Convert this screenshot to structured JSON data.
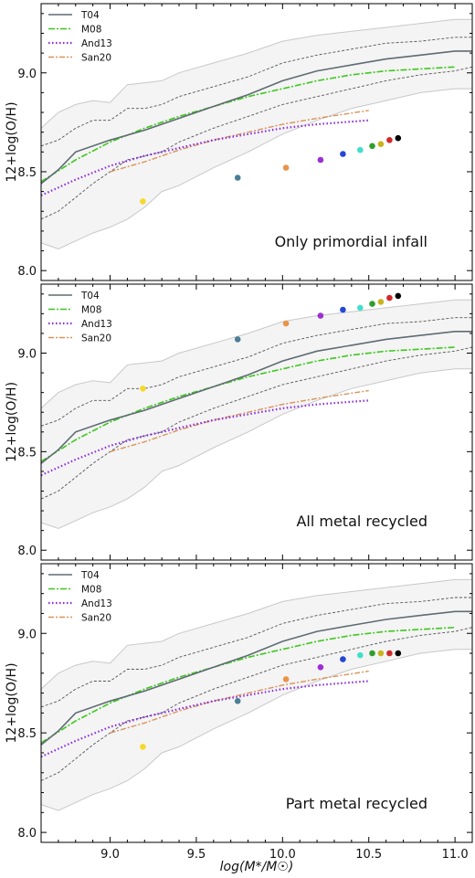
{
  "figure": {
    "xlabel": "log(M*/M☉)",
    "ylabel": "12+log(O/H)"
  },
  "colors": {
    "T04": "#5f6b73",
    "M08": "#3ec81e",
    "And13": "#8a2be2",
    "San20": "#d9935a",
    "band_fill": "#f4f4f4",
    "band_outer": "#c8c8c8",
    "band_inner": "#555555"
  },
  "chart_data": [
    {
      "type": "line",
      "panel": "top",
      "annotation": "Only primordial infall",
      "xlim": [
        8.6,
        11.1
      ],
      "ylim": [
        7.95,
        9.35
      ],
      "xticks": [
        9.0,
        9.5,
        10.0,
        10.5,
        11.0
      ],
      "xticklabels": [
        "9.0",
        "9.5",
        "10.0",
        "10.5",
        "11.0"
      ],
      "yticks": [
        8.0,
        8.5,
        9.0
      ],
      "yticklabels": [
        "8.0",
        "8.5",
        "9.0"
      ],
      "legend": [
        "T04",
        "M08",
        "And13",
        "San20"
      ],
      "legend_position": "top-left",
      "points": [
        {
          "x": 9.19,
          "y": 8.35,
          "color": "#f5d92a"
        },
        {
          "x": 9.74,
          "y": 8.47,
          "color": "#4a7f96"
        },
        {
          "x": 10.02,
          "y": 8.52,
          "color": "#e8944a"
        },
        {
          "x": 10.22,
          "y": 8.56,
          "color": "#9b2fd4"
        },
        {
          "x": 10.35,
          "y": 8.59,
          "color": "#2646d8"
        },
        {
          "x": 10.45,
          "y": 8.61,
          "color": "#3fe0c8"
        },
        {
          "x": 10.52,
          "y": 8.63,
          "color": "#2e9e2e"
        },
        {
          "x": 10.57,
          "y": 8.64,
          "color": "#c8b41e"
        },
        {
          "x": 10.62,
          "y": 8.66,
          "color": "#d42828"
        },
        {
          "x": 10.67,
          "y": 8.67,
          "color": "#000000"
        }
      ]
    },
    {
      "type": "line",
      "panel": "middle",
      "annotation": "All metal recycled",
      "xlim": [
        8.6,
        11.1
      ],
      "ylim": [
        7.95,
        9.35
      ],
      "xticks": [
        9.0,
        9.5,
        10.0,
        10.5,
        11.0
      ],
      "xticklabels": [
        "9.0",
        "9.5",
        "10.0",
        "10.5",
        "11.0"
      ],
      "yticks": [
        8.0,
        8.5,
        9.0
      ],
      "yticklabels": [
        "8.0",
        "8.5",
        "9.0"
      ],
      "legend": [
        "T04",
        "M08",
        "And13",
        "San20"
      ],
      "legend_position": "top-left",
      "points": [
        {
          "x": 9.19,
          "y": 8.82,
          "color": "#f5d92a"
        },
        {
          "x": 9.74,
          "y": 9.07,
          "color": "#4a7f96"
        },
        {
          "x": 10.02,
          "y": 9.15,
          "color": "#e8944a"
        },
        {
          "x": 10.22,
          "y": 9.19,
          "color": "#9b2fd4"
        },
        {
          "x": 10.35,
          "y": 9.22,
          "color": "#2646d8"
        },
        {
          "x": 10.45,
          "y": 9.23,
          "color": "#3fe0c8"
        },
        {
          "x": 10.52,
          "y": 9.25,
          "color": "#2e9e2e"
        },
        {
          "x": 10.57,
          "y": 9.26,
          "color": "#c8b41e"
        },
        {
          "x": 10.62,
          "y": 9.28,
          "color": "#d42828"
        },
        {
          "x": 10.67,
          "y": 9.29,
          "color": "#000000"
        }
      ]
    },
    {
      "type": "line",
      "panel": "bottom",
      "annotation": "Part metal recycled",
      "xlim": [
        8.6,
        11.1
      ],
      "ylim": [
        7.95,
        9.35
      ],
      "xticks": [
        9.0,
        9.5,
        10.0,
        10.5,
        11.0
      ],
      "xticklabels": [
        "9.0",
        "9.5",
        "10.0",
        "10.5",
        "11.0"
      ],
      "yticks": [
        8.0,
        8.5,
        9.0
      ],
      "yticklabels": [
        "8.0",
        "8.5",
        "9.0"
      ],
      "legend": [
        "T04",
        "M08",
        "And13",
        "San20"
      ],
      "legend_position": "top-left",
      "points": [
        {
          "x": 9.19,
          "y": 8.43,
          "color": "#f5d92a"
        },
        {
          "x": 9.74,
          "y": 8.66,
          "color": "#4a7f96"
        },
        {
          "x": 10.02,
          "y": 8.77,
          "color": "#e8944a"
        },
        {
          "x": 10.22,
          "y": 8.83,
          "color": "#9b2fd4"
        },
        {
          "x": 10.35,
          "y": 8.87,
          "color": "#2646d8"
        },
        {
          "x": 10.45,
          "y": 8.89,
          "color": "#3fe0c8"
        },
        {
          "x": 10.52,
          "y": 8.9,
          "color": "#2e9e2e"
        },
        {
          "x": 10.57,
          "y": 8.9,
          "color": "#c8b41e"
        },
        {
          "x": 10.62,
          "y": 8.9,
          "color": "#d42828"
        },
        {
          "x": 10.67,
          "y": 8.9,
          "color": "#000000"
        }
      ]
    }
  ],
  "relations": {
    "T04": {
      "x": [
        8.6,
        8.7,
        8.8,
        9.0,
        9.2,
        9.4,
        9.6,
        9.8,
        10.0,
        10.2,
        10.4,
        10.6,
        10.8,
        11.0,
        11.1
      ],
      "y": [
        8.44,
        8.51,
        8.6,
        8.66,
        8.71,
        8.77,
        8.83,
        8.89,
        8.96,
        9.01,
        9.04,
        9.07,
        9.09,
        9.11,
        9.11
      ]
    },
    "M08": {
      "x": [
        8.6,
        8.8,
        9.0,
        9.2,
        9.4,
        9.6,
        9.8,
        10.0,
        10.2,
        10.4,
        10.6,
        10.8,
        11.0
      ],
      "y": [
        8.45,
        8.56,
        8.65,
        8.72,
        8.78,
        8.83,
        8.88,
        8.92,
        8.96,
        8.99,
        9.01,
        9.02,
        9.03
      ]
    },
    "And13": {
      "x": [
        8.6,
        8.8,
        9.0,
        9.2,
        9.4,
        9.6,
        9.8,
        10.0,
        10.2,
        10.5
      ],
      "y": [
        8.38,
        8.46,
        8.53,
        8.58,
        8.62,
        8.66,
        8.69,
        8.72,
        8.74,
        8.76
      ]
    },
    "San20": {
      "x": [
        9.0,
        9.2,
        9.4,
        9.6,
        9.8,
        10.0,
        10.2,
        10.5
      ],
      "y": [
        8.5,
        8.55,
        8.61,
        8.66,
        8.7,
        8.74,
        8.77,
        8.81
      ]
    },
    "band_upper_outer": {
      "x": [
        8.6,
        8.7,
        8.8,
        8.9,
        9.0,
        9.1,
        9.2,
        9.3,
        9.4,
        9.6,
        9.8,
        10.0,
        10.2,
        10.4,
        10.6,
        10.8,
        11.0,
        11.1
      ],
      "y": [
        8.72,
        8.8,
        8.84,
        8.86,
        8.85,
        8.94,
        8.95,
        8.96,
        9.0,
        9.05,
        9.1,
        9.16,
        9.19,
        9.21,
        9.23,
        9.25,
        9.27,
        9.27
      ]
    },
    "band_upper_inner": {
      "x": [
        8.6,
        8.7,
        8.8,
        8.9,
        9.0,
        9.1,
        9.2,
        9.3,
        9.4,
        9.6,
        9.8,
        10.0,
        10.2,
        10.4,
        10.6,
        10.8,
        11.0,
        11.1
      ],
      "y": [
        8.63,
        8.66,
        8.72,
        8.76,
        8.76,
        8.82,
        8.82,
        8.84,
        8.88,
        8.93,
        8.98,
        9.05,
        9.09,
        9.12,
        9.15,
        9.16,
        9.18,
        9.18
      ]
    },
    "band_lower_inner": {
      "x": [
        8.6,
        8.7,
        8.8,
        8.9,
        9.0,
        9.1,
        9.2,
        9.3,
        9.4,
        9.6,
        9.8,
        10.0,
        10.2,
        10.4,
        10.6,
        10.8,
        11.0,
        11.1
      ],
      "y": [
        8.26,
        8.3,
        8.37,
        8.44,
        8.5,
        8.56,
        8.58,
        8.6,
        8.65,
        8.72,
        8.78,
        8.84,
        8.88,
        8.92,
        8.96,
        8.99,
        9.01,
        9.03
      ]
    },
    "band_lower_outer": {
      "x": [
        8.6,
        8.7,
        8.8,
        8.9,
        9.0,
        9.1,
        9.2,
        9.3,
        9.4,
        9.6,
        9.8,
        10.0,
        10.2,
        10.4,
        10.6,
        10.8,
        11.0,
        11.1
      ],
      "y": [
        8.14,
        8.11,
        8.15,
        8.19,
        8.22,
        8.26,
        8.32,
        8.4,
        8.43,
        8.52,
        8.6,
        8.69,
        8.76,
        8.82,
        8.86,
        8.9,
        8.92,
        8.92
      ]
    }
  }
}
